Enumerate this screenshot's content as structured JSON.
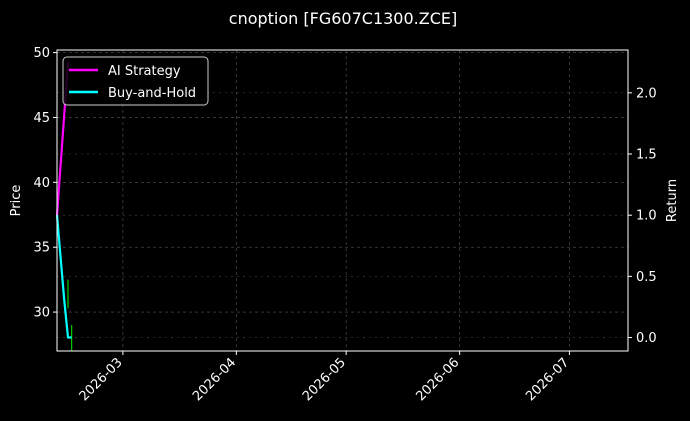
{
  "chart_data": {
    "type": "line",
    "title": "cnoption [FG607C1300.ZCE]",
    "xlabel": "",
    "ylabel_left": "Price",
    "ylabel_right": "Return",
    "x_range": [
      "2026-02-11",
      "2026-07-17"
    ],
    "ylim_left": [
      27,
      50.2
    ],
    "ylim_right": [
      -0.11,
      2.35
    ],
    "x_ticks": [
      "2026-03",
      "2026-04",
      "2026-05",
      "2026-06",
      "2026-07"
    ],
    "y_ticks_left": [
      30,
      35,
      40,
      45,
      50
    ],
    "y_ticks_right": [
      "0.0",
      "0.5",
      "1.0",
      "1.5",
      "2.0"
    ],
    "grid": true,
    "legend_position": "top-left",
    "colors": {
      "background": "#000000",
      "ai_strategy": "#ff00ff",
      "buy_and_hold": "#00ffff",
      "candle_up": "#00cc00",
      "grid": "#555555"
    },
    "series": [
      {
        "name": "AI Strategy",
        "axis": "right",
        "points": [
          {
            "x": "2026-02-11",
            "y": 1.0
          },
          {
            "x": "2026-02-14",
            "y": 2.25
          }
        ]
      },
      {
        "name": "Buy-and-Hold",
        "axis": "right",
        "points": [
          {
            "x": "2026-02-11",
            "y": 1.0
          },
          {
            "x": "2026-02-13",
            "y": 0.3
          },
          {
            "x": "2026-02-14",
            "y": 0.0
          },
          {
            "x": "2026-02-15",
            "y": 0.0
          }
        ]
      }
    ],
    "candles": [
      {
        "x": "2026-02-14",
        "low": 30.3,
        "high": 32.5
      },
      {
        "x": "2026-02-15",
        "low": 27.0,
        "high": 29.0
      }
    ]
  }
}
